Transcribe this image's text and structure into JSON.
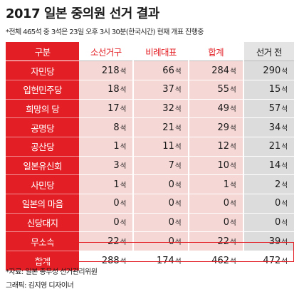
{
  "title": "2017 일본 중의원 선거 결과",
  "subnote": "*전체 465석 중 3석은 23일 오후 3시 30분(한국시간) 현재 개표 진행중",
  "colors": {
    "accent": "#e31e24",
    "cell": "#f5d7d5",
    "cell_pre": "#dcdcdc",
    "header_pre": "#e4e4e4"
  },
  "unit": "석",
  "table": {
    "headers": {
      "party": "구분",
      "district": "소선거구",
      "pr": "비례대표",
      "total": "합계",
      "prev": "선거 전"
    },
    "rows": [
      {
        "party": "자민당",
        "district": "218",
        "pr": "66",
        "total": "284",
        "prev": "290"
      },
      {
        "party": "입헌민주당",
        "district": "18",
        "pr": "37",
        "total": "55",
        "prev": "15"
      },
      {
        "party": "희망의 당",
        "district": "17",
        "pr": "32",
        "total": "49",
        "prev": "57"
      },
      {
        "party": "공명당",
        "district": "8",
        "pr": "21",
        "total": "29",
        "prev": "34"
      },
      {
        "party": "공산당",
        "district": "1",
        "pr": "11",
        "total": "12",
        "prev": "21"
      },
      {
        "party": "일본유신회",
        "district": "3",
        "pr": "7",
        "total": "10",
        "prev": "14"
      },
      {
        "party": "사민당",
        "district": "1",
        "pr": "0",
        "total": "1",
        "prev": "2"
      },
      {
        "party": "일본의 마음",
        "district": "0",
        "pr": "0",
        "total": "0",
        "prev": "0"
      },
      {
        "party": "신당대지",
        "district": "0",
        "pr": "0",
        "total": "0",
        "prev": "0"
      },
      {
        "party": "무소속",
        "district": "22",
        "pr": "0",
        "total": "22",
        "prev": "39"
      }
    ],
    "total_row": {
      "party": "합계",
      "district": "288",
      "pr": "174",
      "total": "462",
      "prev": "472"
    }
  },
  "source": "*자료: 일본 총무성 선거관리위원",
  "credit": "그래픽: 김지영 디자이너"
}
